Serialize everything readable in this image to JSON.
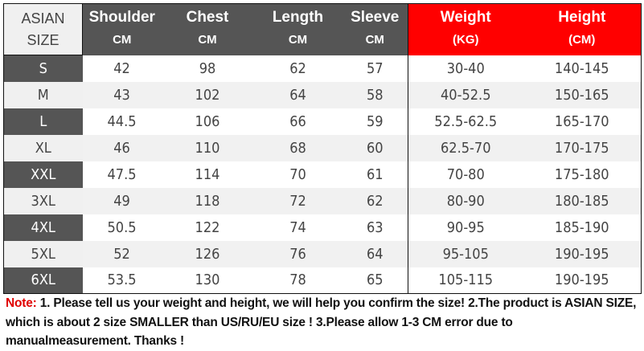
{
  "table": {
    "headers": [
      {
        "label": "ASIAN",
        "unit": "SIZE"
      },
      {
        "label": "Shoulder",
        "unit": "CM"
      },
      {
        "label": "Chest",
        "unit": "CM"
      },
      {
        "label": "Length",
        "unit": "CM"
      },
      {
        "label": "Sleeve",
        "unit": "CM"
      },
      {
        "label": "Weight",
        "unit": "(KG)"
      },
      {
        "label": "Height",
        "unit": "(CM)"
      }
    ],
    "rows": [
      [
        "S",
        "42",
        "98",
        "62",
        "57",
        "30-40",
        "140-145"
      ],
      [
        "M",
        "43",
        "102",
        "64",
        "58",
        "40-52.5",
        "150-165"
      ],
      [
        "L",
        "44.5",
        "106",
        "66",
        "59",
        "52.5-62.5",
        "165-170"
      ],
      [
        "XL",
        "46",
        "110",
        "68",
        "60",
        "62.5-70",
        "170-175"
      ],
      [
        "XXL",
        "47.5",
        "114",
        "70",
        "61",
        "70-80",
        "175-180"
      ],
      [
        "3XL",
        "49",
        "118",
        "72",
        "62",
        "80-90",
        "180-185"
      ],
      [
        "4XL",
        "50.5",
        "122",
        "74",
        "63",
        "90-95",
        "185-190"
      ],
      [
        "5XL",
        "52",
        "126",
        "76",
        "64",
        "95-105",
        "190-195"
      ],
      [
        "6XL",
        "53.5",
        "130",
        "78",
        "65",
        "105-115",
        "190-195"
      ]
    ]
  },
  "colors": {
    "header_dark": "#555555",
    "header_red": "#ff0000",
    "note_label": "#e00000"
  },
  "note": {
    "label": "Note:",
    "text": " 1. Please tell us your weight and height, we will help you confirm the size!  2.The product is ASIAN SIZE, which is about 2 size SMALLER than US/RU/EU size ! 3.Please allow 1-3 CM error due to manualmeasurement.  Thanks !"
  }
}
